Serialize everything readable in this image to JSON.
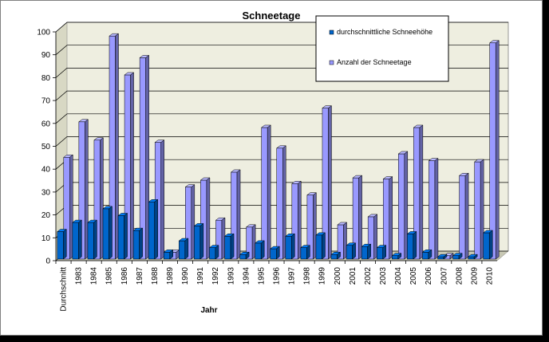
{
  "chart_data": {
    "type": "bar",
    "title": "Schneetage",
    "xlabel": "Jahr",
    "ylabel": "",
    "ylim": [
      0,
      100
    ],
    "yticks": [
      0,
      10,
      20,
      30,
      40,
      50,
      60,
      70,
      80,
      90,
      100
    ],
    "grid": true,
    "legend_position": "top-right",
    "categories": [
      "Durchschnitt",
      "1983",
      "1984",
      "1985",
      "1986",
      "1987",
      "1988",
      "1989",
      "1990",
      "1991",
      "1992",
      "1993",
      "1994",
      "1995",
      "1996",
      "1997",
      "1998",
      "1999",
      "2000",
      "2001",
      "2002",
      "2003",
      "2004",
      "2005",
      "2006",
      "2007",
      "2008",
      "2009",
      "2010"
    ],
    "series": [
      {
        "name": "durchschnittliche Schneehöhe",
        "color": "#0066cc",
        "values": [
          12,
          16,
          16,
          22,
          19,
          12.5,
          25,
          3,
          8,
          14.5,
          5,
          10,
          2,
          7,
          4.5,
          10,
          5,
          10.5,
          2,
          6,
          5.5,
          5,
          1.5,
          11,
          3,
          1,
          1.5,
          1,
          11.5
        ]
      },
      {
        "name": "Anzahl der Schneetage",
        "color": "#9999ff",
        "values": [
          44.5,
          60,
          52,
          97.5,
          80.5,
          88,
          51,
          3,
          31.5,
          34.5,
          17,
          38,
          14,
          57.5,
          48.5,
          33,
          28,
          66,
          15,
          35.5,
          18.5,
          35,
          46,
          57.5,
          43,
          1.5,
          36.5,
          42.5,
          94.5
        ]
      }
    ]
  }
}
